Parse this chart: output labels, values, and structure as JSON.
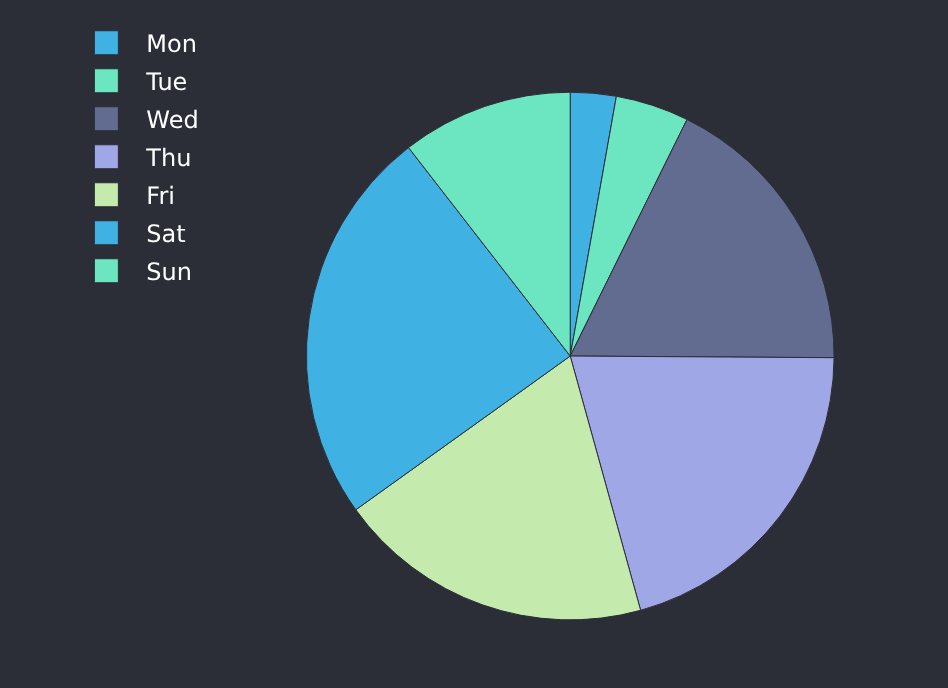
{
  "chart_data": {
    "type": "pie",
    "categories": [
      "Mon",
      "Tue",
      "Wed",
      "Thu",
      "Fri",
      "Sat",
      "Sun"
    ],
    "values": [
      2.8,
      4.5,
      17.8,
      20.6,
      19.4,
      24.4,
      10.5
    ],
    "colors": [
      "#3fb1e3",
      "#6be6c1",
      "#626c91",
      "#a0a7e6",
      "#c4ebad",
      "#3fb1e3",
      "#6be6c1"
    ],
    "legend": "top left"
  }
}
